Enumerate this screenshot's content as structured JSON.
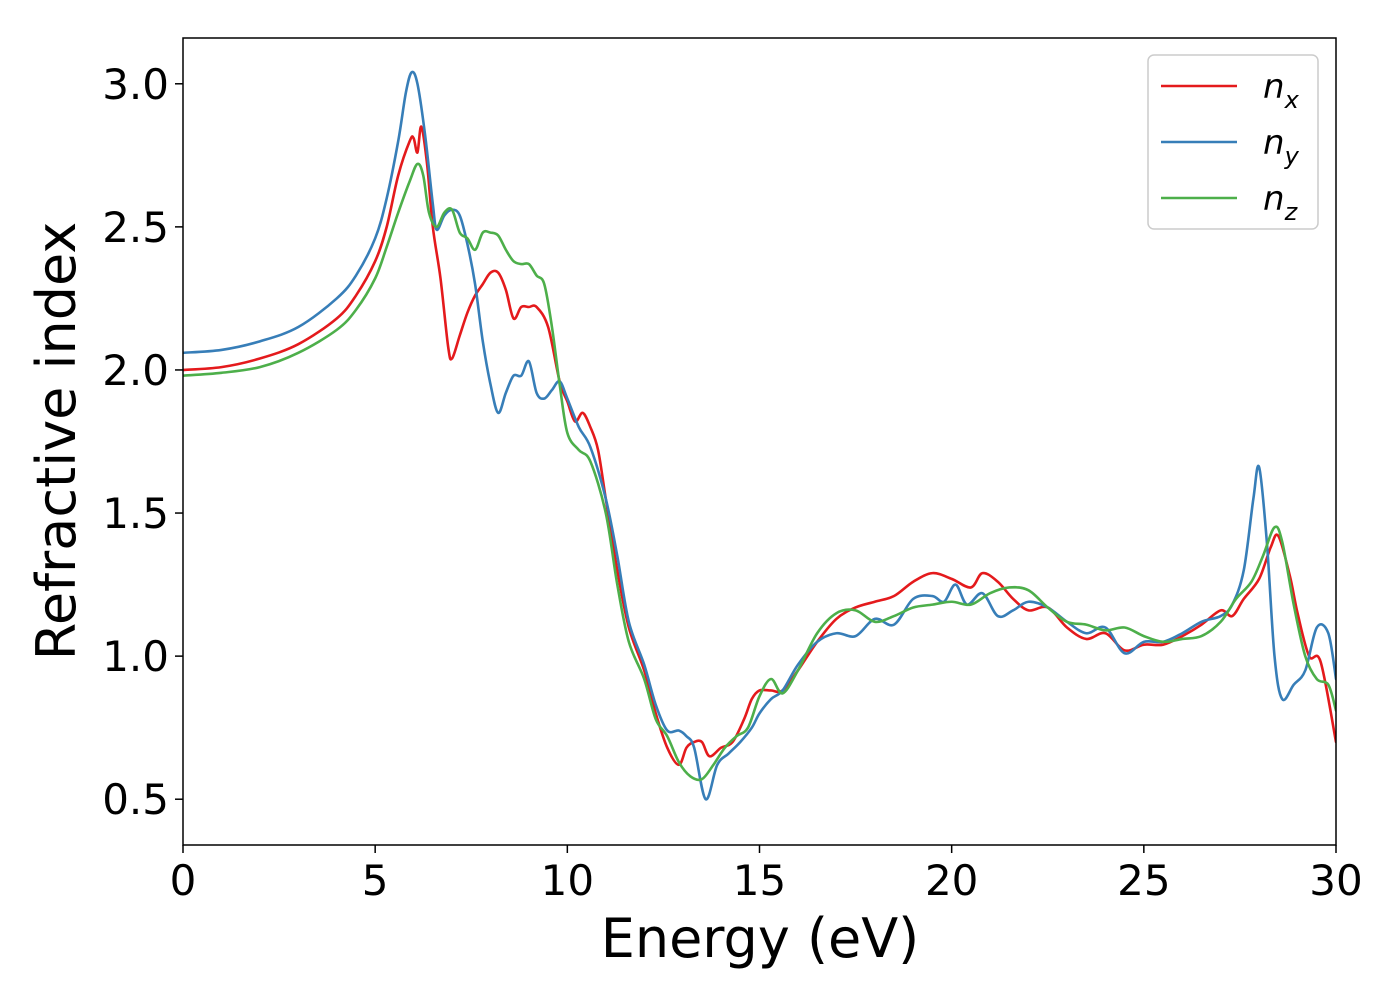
{
  "chart_data": {
    "type": "line",
    "xlabel": "Energy (eV)",
    "ylabel": "Refractive index",
    "xlim": [
      0,
      30
    ],
    "ylim": [
      0.34,
      3.16
    ],
    "xticks": [
      0,
      5,
      10,
      15,
      20,
      25,
      30
    ],
    "xtick_labels": [
      "0",
      "5",
      "10",
      "15",
      "20",
      "25",
      "30"
    ],
    "yticks": [
      0.5,
      1.0,
      1.5,
      2.0,
      2.5,
      3.0
    ],
    "ytick_labels": [
      "0.5",
      "1.0",
      "1.5",
      "2.0",
      "2.5",
      "3.0"
    ],
    "grid": false,
    "legend_position": "top-right",
    "series": [
      {
        "name": "n",
        "subscript": "x",
        "color": "#e41a1c",
        "x": [
          0,
          1,
          2,
          3,
          4,
          4.5,
          5,
          5.3,
          5.6,
          5.9,
          6.0,
          6.1,
          6.2,
          6.35,
          6.5,
          6.7,
          6.9,
          7.0,
          7.2,
          7.4,
          7.6,
          7.8,
          8.0,
          8.2,
          8.4,
          8.6,
          8.8,
          9.0,
          9.2,
          9.5,
          9.8,
          10.0,
          10.2,
          10.4,
          10.6,
          10.8,
          11.0,
          11.3,
          11.6,
          12.0,
          12.3,
          12.6,
          12.9,
          13.1,
          13.3,
          13.5,
          13.7,
          14.0,
          14.3,
          14.6,
          14.8,
          15.0,
          15.3,
          15.6,
          16.0,
          16.5,
          17.0,
          17.5,
          18.0,
          18.5,
          19.0,
          19.5,
          20.0,
          20.5,
          20.8,
          21.2,
          21.6,
          22.0,
          22.5,
          23.0,
          23.5,
          24.0,
          24.5,
          25.0,
          25.5,
          26.0,
          26.5,
          27.0,
          27.3,
          27.6,
          28.0,
          28.3,
          28.5,
          28.8,
          29.0,
          29.3,
          29.6,
          30.0
        ],
        "y": [
          2.0,
          2.01,
          2.04,
          2.09,
          2.18,
          2.26,
          2.38,
          2.5,
          2.68,
          2.8,
          2.81,
          2.76,
          2.85,
          2.72,
          2.5,
          2.32,
          2.08,
          2.04,
          2.12,
          2.2,
          2.26,
          2.3,
          2.34,
          2.34,
          2.28,
          2.18,
          2.22,
          2.22,
          2.22,
          2.15,
          1.96,
          1.89,
          1.82,
          1.85,
          1.8,
          1.72,
          1.55,
          1.3,
          1.1,
          0.95,
          0.8,
          0.68,
          0.62,
          0.68,
          0.7,
          0.7,
          0.65,
          0.68,
          0.7,
          0.78,
          0.85,
          0.88,
          0.88,
          0.88,
          0.95,
          1.05,
          1.13,
          1.17,
          1.19,
          1.21,
          1.26,
          1.29,
          1.27,
          1.24,
          1.29,
          1.26,
          1.2,
          1.16,
          1.17,
          1.1,
          1.06,
          1.08,
          1.02,
          1.04,
          1.04,
          1.07,
          1.11,
          1.16,
          1.14,
          1.2,
          1.27,
          1.38,
          1.42,
          1.28,
          1.15,
          1.0,
          0.98,
          0.7
        ]
      },
      {
        "name": "n",
        "subscript": "y",
        "color": "#377eb8",
        "x": [
          0,
          1,
          2,
          3,
          4,
          4.5,
          5,
          5.3,
          5.6,
          5.8,
          5.95,
          6.1,
          6.3,
          6.5,
          6.6,
          6.8,
          7.0,
          7.2,
          7.4,
          7.6,
          7.8,
          8.0,
          8.2,
          8.4,
          8.6,
          8.8,
          9.0,
          9.2,
          9.4,
          9.6,
          9.8,
          10.0,
          10.3,
          10.6,
          11.0,
          11.3,
          11.6,
          12.0,
          12.3,
          12.6,
          12.9,
          13.1,
          13.3,
          13.6,
          13.9,
          14.2,
          14.5,
          14.8,
          15.0,
          15.3,
          15.6,
          16.0,
          16.5,
          17.0,
          17.5,
          18.0,
          18.5,
          19.0,
          19.5,
          19.8,
          20.1,
          20.4,
          20.8,
          21.2,
          21.6,
          22.0,
          22.5,
          23.0,
          23.5,
          24.0,
          24.5,
          25.0,
          25.5,
          26.0,
          26.5,
          27.0,
          27.3,
          27.6,
          27.85,
          28.0,
          28.2,
          28.4,
          28.6,
          28.9,
          29.2,
          29.5,
          29.8,
          30.0
        ],
        "y": [
          2.06,
          2.07,
          2.1,
          2.15,
          2.25,
          2.33,
          2.46,
          2.6,
          2.8,
          2.97,
          3.04,
          3.0,
          2.82,
          2.58,
          2.49,
          2.54,
          2.56,
          2.54,
          2.44,
          2.3,
          2.1,
          1.95,
          1.85,
          1.92,
          1.98,
          1.98,
          2.03,
          1.92,
          1.9,
          1.93,
          1.96,
          1.9,
          1.8,
          1.73,
          1.55,
          1.35,
          1.12,
          0.97,
          0.83,
          0.74,
          0.74,
          0.72,
          0.68,
          0.5,
          0.62,
          0.66,
          0.7,
          0.75,
          0.8,
          0.85,
          0.88,
          0.97,
          1.05,
          1.08,
          1.07,
          1.13,
          1.11,
          1.2,
          1.21,
          1.19,
          1.25,
          1.18,
          1.22,
          1.14,
          1.16,
          1.19,
          1.17,
          1.12,
          1.08,
          1.1,
          1.01,
          1.05,
          1.05,
          1.08,
          1.12,
          1.14,
          1.18,
          1.3,
          1.55,
          1.66,
          1.4,
          1.0,
          0.85,
          0.9,
          0.95,
          1.1,
          1.08,
          0.92
        ]
      },
      {
        "name": "n",
        "subscript": "z",
        "color": "#4daf4a",
        "x": [
          0,
          1,
          2,
          3,
          4,
          4.5,
          5,
          5.3,
          5.6,
          5.9,
          6.1,
          6.25,
          6.4,
          6.6,
          6.8,
          7.0,
          7.2,
          7.4,
          7.6,
          7.8,
          8.0,
          8.2,
          8.4,
          8.6,
          8.8,
          9.0,
          9.2,
          9.4,
          9.6,
          9.8,
          10.0,
          10.3,
          10.6,
          11.0,
          11.3,
          11.6,
          12.0,
          12.3,
          12.6,
          12.9,
          13.2,
          13.5,
          13.8,
          14.1,
          14.4,
          14.7,
          15.0,
          15.3,
          15.6,
          16.0,
          16.5,
          17.0,
          17.5,
          18.0,
          18.5,
          19.0,
          19.5,
          20.0,
          20.5,
          21.0,
          21.5,
          22.0,
          22.5,
          23.0,
          23.5,
          24.0,
          24.5,
          25.0,
          25.5,
          26.0,
          26.5,
          27.0,
          27.4,
          27.8,
          28.1,
          28.4,
          28.6,
          28.9,
          29.2,
          29.5,
          29.8,
          30.0
        ],
        "y": [
          1.98,
          1.99,
          2.01,
          2.06,
          2.14,
          2.21,
          2.32,
          2.43,
          2.55,
          2.66,
          2.72,
          2.68,
          2.55,
          2.5,
          2.55,
          2.56,
          2.48,
          2.46,
          2.42,
          2.48,
          2.48,
          2.47,
          2.42,
          2.38,
          2.37,
          2.37,
          2.33,
          2.3,
          2.15,
          1.95,
          1.78,
          1.72,
          1.68,
          1.5,
          1.25,
          1.05,
          0.92,
          0.78,
          0.72,
          0.63,
          0.58,
          0.57,
          0.62,
          0.68,
          0.72,
          0.75,
          0.86,
          0.92,
          0.87,
          0.95,
          1.08,
          1.15,
          1.16,
          1.12,
          1.14,
          1.17,
          1.18,
          1.19,
          1.18,
          1.22,
          1.24,
          1.23,
          1.17,
          1.12,
          1.11,
          1.09,
          1.1,
          1.07,
          1.05,
          1.06,
          1.07,
          1.12,
          1.2,
          1.26,
          1.35,
          1.45,
          1.4,
          1.18,
          1.0,
          0.92,
          0.9,
          0.81
        ]
      }
    ]
  }
}
